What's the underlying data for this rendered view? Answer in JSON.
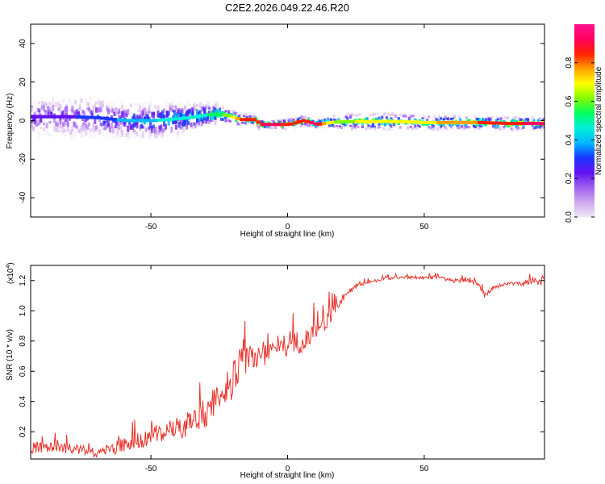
{
  "figure_title": "C2E2.2026.049.22.46.R20",
  "chart_data": [
    {
      "type": "heatmap",
      "title": "C2E2.2026.049.22.46.R20",
      "xlabel": "Height of straight line (km)",
      "ylabel": "Frequency (Hz)",
      "xlim": [
        -94,
        94
      ],
      "ylim": [
        -50,
        50
      ],
      "xticks": [
        -50,
        0,
        50
      ],
      "yticks": [
        -40,
        -20,
        0,
        20,
        40
      ],
      "colorbar": {
        "label": "Normalized spectral amplitude",
        "range": [
          0,
          1
        ],
        "ticks": [
          "0.0",
          "0.2",
          "0.4",
          "0.6",
          "0.8"
        ],
        "tick_values": [
          0,
          0.2,
          0.4,
          0.6,
          0.8
        ],
        "colors": [
          "#ece8f4",
          "#cfa8ee",
          "#a060f0",
          "#6010f0",
          "#1838ff",
          "#00b8ff",
          "#00f0d8",
          "#00ff60",
          "#80ff00",
          "#ffff00",
          "#ffa000",
          "#ff2000",
          "#ff0060",
          "#ff1090"
        ]
      },
      "ridge": {
        "x": [
          -92,
          -80,
          -70,
          -60,
          -50,
          -40,
          -34,
          -30,
          -26,
          -22,
          -18,
          -12,
          -11,
          -6,
          0,
          5,
          8,
          10,
          15,
          20,
          30,
          40,
          50,
          60,
          70,
          80,
          92
        ],
        "freq": [
          2,
          2,
          1.5,
          0,
          0,
          1,
          2,
          3,
          3.5,
          2.5,
          0.5,
          0.5,
          -2,
          -2,
          -2,
          0,
          -1,
          -2,
          -1,
          -0.5,
          -0.5,
          -0.5,
          -1,
          -1,
          -1,
          -1.5,
          -1.5
        ],
        "amplitude": [
          0.3,
          0.3,
          0.35,
          0.4,
          0.45,
          0.5,
          0.5,
          0.55,
          0.6,
          0.65,
          0.85,
          0.85,
          0.95,
          0.95,
          0.9,
          0.85,
          0.95,
          0.95,
          0.7,
          0.65,
          0.75,
          0.7,
          0.75,
          0.8,
          0.85,
          0.9,
          0.95
        ],
        "spread_hz": [
          10,
          11,
          10,
          9,
          9,
          8,
          7,
          6,
          5,
          4,
          3,
          2,
          2,
          2,
          2.5,
          2.5,
          2,
          2,
          3,
          4,
          4,
          4,
          3.5,
          3.5,
          3,
          3,
          3
        ]
      }
    },
    {
      "type": "line",
      "xlabel": "Height of straight line (km)",
      "ylabel": "SNR (10 * v/v)",
      "y_multiplier": "(x10",
      "y_multiplier_exp": "4",
      "y_multiplier_close": ")",
      "xlim": [
        -94,
        94
      ],
      "ylim": [
        0.02,
        1.3
      ],
      "xticks": [
        -50,
        0,
        50
      ],
      "yticks": [
        0.2,
        0.4,
        0.6,
        0.8,
        1.0,
        1.2
      ],
      "ytick_labels": [
        "0.2",
        "0.4",
        "0.6",
        "0.8",
        "1.0",
        "1.2"
      ],
      "color": "#e8342c",
      "x": [
        -94,
        -90,
        -85,
        -80,
        -75,
        -72,
        -70,
        -67,
        -64,
        -60,
        -55,
        -50,
        -45,
        -40,
        -35,
        -30,
        -26,
        -22,
        -20,
        -18,
        -15,
        -12,
        -8,
        -4,
        0,
        4,
        8,
        12,
        15,
        18,
        20,
        22,
        25,
        30,
        35,
        40,
        45,
        50,
        55,
        60,
        65,
        70,
        72,
        75,
        80,
        85,
        90,
        94
      ],
      "y": [
        0.09,
        0.1,
        0.09,
        0.09,
        0.08,
        0.06,
        0.05,
        0.07,
        0.09,
        0.11,
        0.14,
        0.17,
        0.19,
        0.22,
        0.26,
        0.32,
        0.42,
        0.5,
        0.55,
        0.62,
        0.68,
        0.7,
        0.73,
        0.76,
        0.77,
        0.79,
        0.82,
        0.88,
        0.95,
        1.02,
        1.07,
        1.12,
        1.16,
        1.19,
        1.21,
        1.22,
        1.22,
        1.22,
        1.22,
        1.2,
        1.2,
        1.18,
        1.1,
        1.15,
        1.18,
        1.18,
        1.19,
        1.2
      ],
      "noise": [
        0.05,
        0.06,
        0.05,
        0.05,
        0.04,
        0.03,
        0.03,
        0.05,
        0.06,
        0.07,
        0.08,
        0.09,
        0.1,
        0.11,
        0.12,
        0.14,
        0.16,
        0.18,
        0.18,
        0.17,
        0.15,
        0.14,
        0.13,
        0.12,
        0.11,
        0.11,
        0.1,
        0.09,
        0.08,
        0.05,
        0.03,
        0.025,
        0.02,
        0.015,
        0.015,
        0.015,
        0.015,
        0.015,
        0.015,
        0.02,
        0.02,
        0.02,
        0.03,
        0.02,
        0.02,
        0.02,
        0.03,
        0.06
      ]
    }
  ]
}
